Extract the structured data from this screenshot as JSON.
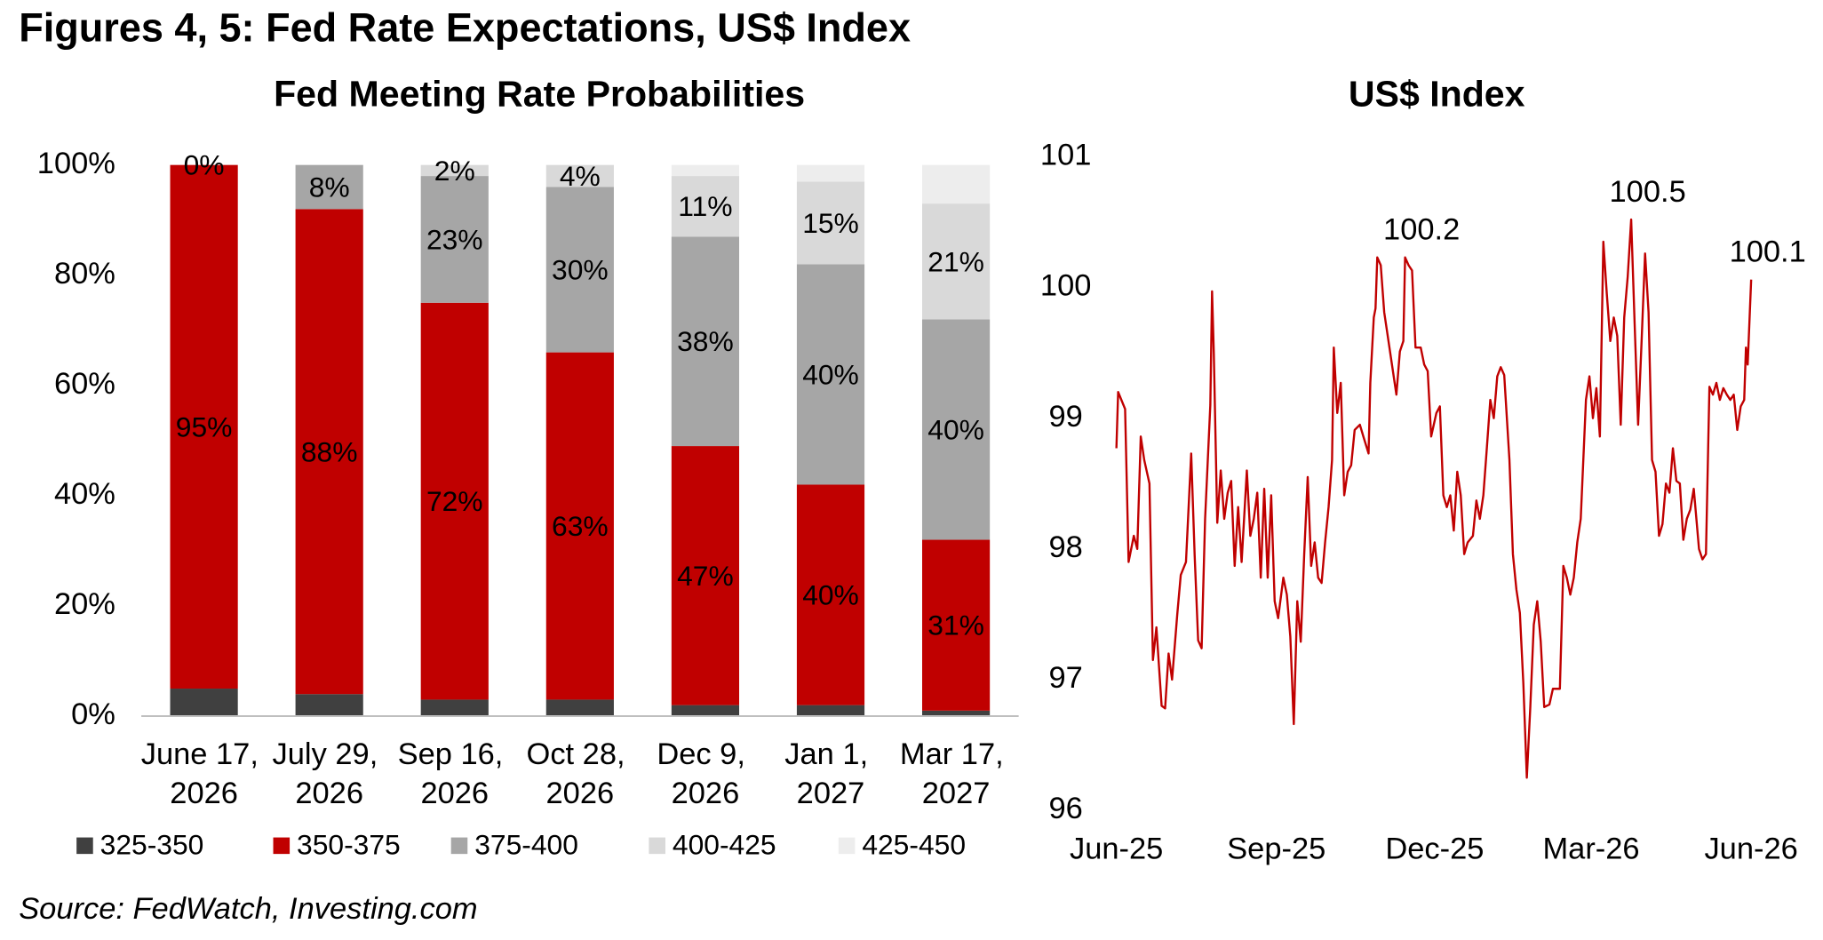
{
  "title": "Figures 4, 5: Fed Rate Expectations, US$ Index",
  "source": "Source: FedWatch, Investing.com",
  "chart_data": [
    {
      "type": "bar",
      "stacked": true,
      "title": "Fed Meeting Rate Probabilities",
      "categories": [
        "June 17, 2026",
        "July 29, 2026",
        "Sep 16, 2026",
        "Oct 28, 2026",
        "Dec 9, 2026",
        "Jan 1, 2027",
        "Mar 17, 2027"
      ],
      "series": [
        {
          "name": "325-350",
          "color": "#404040",
          "values": [
            5,
            4,
            3,
            3,
            2,
            2,
            1
          ]
        },
        {
          "name": "350-375",
          "color": "#c00000",
          "values": [
            95,
            88,
            72,
            63,
            47,
            40,
            31
          ],
          "value_labels": [
            "95%",
            "88%",
            "72%",
            "63%",
            "47%",
            "40%",
            "31%"
          ]
        },
        {
          "name": "375-400",
          "color": "#a6a6a6",
          "values": [
            0,
            8,
            23,
            30,
            38,
            40,
            40
          ],
          "value_labels": [
            "0%",
            "8%",
            "23%",
            "30%",
            "38%",
            "40%",
            "40%"
          ]
        },
        {
          "name": "400-425",
          "color": "#d9d9d9",
          "values": [
            0,
            0,
            2,
            4,
            11,
            15,
            21
          ],
          "value_labels": [
            null,
            null,
            "2%",
            "4%",
            "11%",
            "15%",
            "21%"
          ]
        },
        {
          "name": "425-450",
          "color": "#ededed",
          "values": [
            0,
            0,
            0,
            0,
            2,
            3,
            7
          ]
        }
      ],
      "ylim": [
        0,
        100
      ],
      "yticks": [
        {
          "value": 0,
          "label": "0%"
        },
        {
          "value": 20,
          "label": "20%"
        },
        {
          "value": 40,
          "label": "40%"
        },
        {
          "value": 60,
          "label": "60%"
        },
        {
          "value": 80,
          "label": "80%"
        },
        {
          "value": 100,
          "label": "100%"
        }
      ],
      "legend": "bottom"
    },
    {
      "type": "line",
      "title": "US$ Index",
      "x": [
        0,
        1,
        5,
        7,
        10,
        12,
        14,
        16,
        19,
        21,
        23,
        26,
        28,
        30,
        32,
        35,
        37,
        40,
        43,
        45,
        47,
        49,
        51,
        54,
        55,
        56,
        58,
        60,
        62,
        64,
        66,
        68,
        70,
        72,
        75,
        77,
        79,
        81,
        83,
        85,
        87,
        89,
        91,
        93,
        96,
        98,
        100,
        102,
        104,
        106,
        108,
        110,
        112,
        114,
        116,
        118,
        120,
        122,
        124,
        125,
        127,
        129,
        131,
        133,
        135,
        137,
        140,
        142,
        145,
        146,
        148,
        149,
        150,
        152,
        154,
        156,
        158,
        161,
        163,
        165,
        166,
        168,
        170,
        172,
        175,
        177,
        179,
        181,
        184,
        186,
        188,
        190,
        192,
        194,
        196,
        198,
        200,
        202,
        205,
        207,
        209,
        211,
        213,
        215,
        217,
        219,
        221,
        223,
        226,
        228,
        230,
        232,
        234,
        236,
        238,
        240,
        242,
        244,
        246,
        249,
        251,
        253,
        255,
        257,
        259,
        261,
        263,
        265,
        267,
        270,
        272,
        274,
        276,
        278,
        280,
        282,
        284,
        286,
        288,
        290,
        292,
        294,
        296,
        298,
        300,
        302,
        304,
        306,
        308,
        310,
        312,
        314,
        316,
        318,
        320,
        322,
        324,
        326,
        328,
        330,
        332,
        335,
        337,
        339,
        341,
        343,
        345,
        347,
        349,
        351,
        353,
        355,
        357,
        359,
        361,
        362,
        363,
        365
      ],
      "series": [
        {
          "color": "#c00000",
          "values": [
            98.77,
            99.2,
            99.07,
            97.9,
            98.1,
            98.0,
            98.86,
            98.68,
            98.5,
            97.15,
            97.4,
            96.8,
            96.78,
            97.2,
            97.0,
            97.5,
            97.8,
            97.9,
            98.73,
            97.95,
            97.3,
            97.24,
            98.23,
            99.1,
            99.97,
            99.5,
            98.2,
            98.6,
            98.23,
            98.43,
            98.52,
            97.87,
            98.32,
            97.9,
            98.6,
            98.1,
            98.23,
            98.43,
            97.78,
            98.46,
            97.78,
            98.41,
            97.6,
            97.47,
            97.78,
            97.65,
            97.33,
            96.66,
            97.6,
            97.29,
            97.96,
            98.55,
            97.87,
            98.05,
            97.78,
            97.74,
            98.05,
            98.32,
            98.68,
            99.54,
            99.04,
            99.27,
            98.41,
            98.59,
            98.64,
            98.91,
            98.95,
            98.86,
            98.73,
            99.27,
            99.77,
            99.84,
            100.23,
            100.17,
            99.81,
            99.63,
            99.45,
            99.18,
            99.51,
            99.59,
            100.23,
            100.17,
            100.13,
            99.54,
            99.54,
            99.41,
            99.36,
            98.86,
            99.04,
            99.09,
            98.41,
            98.32,
            98.41,
            98.14,
            98.59,
            98.41,
            97.96,
            98.05,
            98.1,
            98.37,
            98.23,
            98.41,
            98.77,
            99.14,
            99.0,
            99.32,
            99.39,
            99.33,
            98.68,
            97.96,
            97.69,
            97.51,
            96.97,
            96.25,
            96.79,
            97.42,
            97.6,
            97.29,
            96.79,
            96.81,
            96.93,
            96.93,
            96.93,
            97.87,
            97.78,
            97.65,
            97.78,
            98.05,
            98.23,
            99.14,
            99.32,
            99.0,
            99.23,
            98.86,
            100.35,
            99.95,
            99.59,
            99.77,
            99.63,
            98.95,
            99.77,
            100.08,
            100.52,
            99.72,
            98.95,
            99.59,
            100.26,
            99.81,
            98.68,
            98.59,
            98.1,
            98.19,
            98.5,
            98.43,
            98.77,
            98.52,
            98.5,
            98.07,
            98.23,
            98.3,
            98.46,
            98.0,
            97.92,
            97.96,
            99.24,
            99.18,
            99.27,
            99.14,
            99.23,
            99.18,
            99.14,
            99.18,
            98.91,
            99.09,
            99.14,
            99.54,
            99.41,
            100.06
          ],
          "value_labels": [
            null,
            null,
            null,
            null,
            null,
            null,
            null,
            null,
            null,
            null,
            null,
            null,
            null,
            null,
            null,
            null,
            null,
            null,
            null,
            null,
            null,
            null,
            null,
            null,
            null,
            null,
            null,
            null,
            null,
            null,
            null,
            null,
            null,
            null,
            null,
            null,
            null,
            null,
            null,
            null,
            null,
            null,
            null,
            null,
            null,
            null,
            null,
            null,
            null,
            null,
            null,
            null,
            null,
            null,
            null,
            null,
            null,
            null,
            null,
            null,
            null,
            null,
            null,
            null,
            null,
            null,
            null,
            null,
            null,
            null,
            null,
            null,
            null,
            null,
            null,
            null,
            null,
            null,
            null,
            null,
            "100.2",
            null,
            null,
            null,
            null,
            null,
            null,
            null,
            null,
            null,
            null,
            null,
            null,
            null,
            null,
            null,
            null,
            null,
            null,
            null,
            null,
            null,
            null,
            null,
            null,
            null,
            null,
            null,
            null,
            null,
            null,
            null,
            null,
            null,
            null,
            null,
            null,
            null,
            null,
            null,
            null,
            null,
            null,
            null,
            null,
            null,
            null,
            null,
            null,
            null,
            null,
            null,
            null,
            null,
            null,
            null,
            null,
            null,
            null,
            null,
            null,
            null,
            "100.5",
            null,
            null,
            null,
            null,
            null,
            null,
            null,
            null,
            null,
            null,
            null,
            null,
            null,
            null,
            null,
            null,
            null,
            null,
            null,
            null,
            null,
            null,
            null,
            null,
            null,
            null,
            null,
            null,
            null,
            null,
            null,
            null,
            null,
            null,
            "100.1"
          ]
        }
      ],
      "xlim": [
        0,
        365
      ],
      "xticks": [
        {
          "value": 0,
          "label": "Jun-25"
        },
        {
          "value": 92,
          "label": "Sep-25"
        },
        {
          "value": 183,
          "label": "Dec-25"
        },
        {
          "value": 273,
          "label": "Mar-26"
        },
        {
          "value": 365,
          "label": "Jun-26"
        }
      ],
      "ylim": [
        96,
        101
      ],
      "yticks": [
        96,
        97,
        98,
        99,
        100,
        101
      ]
    }
  ]
}
